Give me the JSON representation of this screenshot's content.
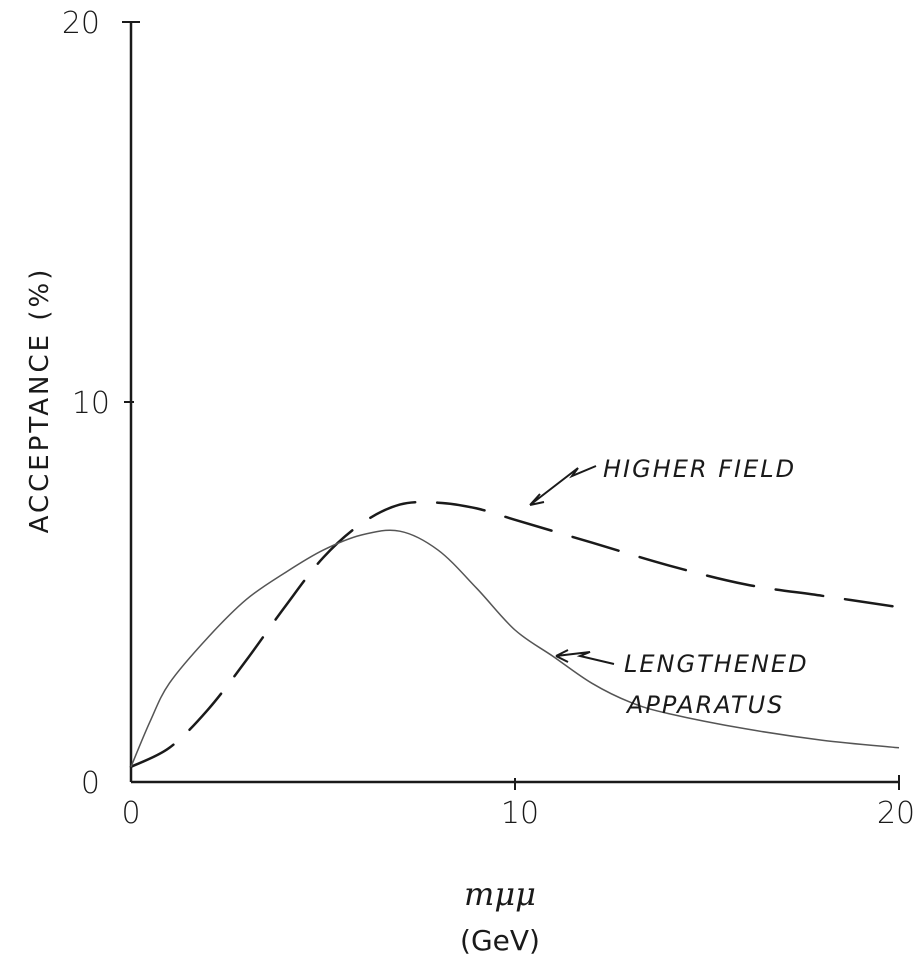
{
  "chart_data": {
    "type": "line",
    "xlabel": "mμμ",
    "xunit": "(GeV)",
    "ylabel": "ACCEPTANCE (%)",
    "xlim": [
      0,
      20
    ],
    "ylim": [
      0,
      20
    ],
    "xticks": [
      "0",
      "10",
      "20"
    ],
    "yticks": [
      "0",
      "10",
      "20"
    ],
    "grid": false,
    "series": [
      {
        "name": "HIGHER FIELD",
        "style": "dashed",
        "color": "#1a1a1a",
        "x": [
          0,
          1,
          2,
          3,
          4,
          5,
          6,
          7,
          8,
          9,
          10,
          12,
          14,
          16,
          18,
          20
        ],
        "y": [
          0.4,
          0.9,
          1.9,
          3.2,
          4.6,
          5.9,
          6.8,
          7.3,
          7.35,
          7.2,
          6.9,
          6.3,
          5.7,
          5.2,
          4.9,
          4.6
        ]
      },
      {
        "name": "LENGTHENED APPARATUS",
        "style": "solid",
        "color": "#555555",
        "x": [
          0,
          0.5,
          1,
          2,
          3,
          4,
          5,
          6,
          7,
          8,
          9,
          10,
          11,
          12,
          13,
          14,
          16,
          18,
          20
        ],
        "y": [
          0.4,
          1.6,
          2.6,
          3.8,
          4.8,
          5.5,
          6.1,
          6.5,
          6.6,
          6.1,
          5.1,
          4.0,
          3.3,
          2.6,
          2.1,
          1.8,
          1.4,
          1.1,
          0.9
        ]
      }
    ],
    "annotations": [
      {
        "text": "HIGHER FIELD",
        "series": "HIGHER FIELD"
      },
      {
        "text": "LENGTHENED",
        "series": "LENGTHENED APPARATUS"
      },
      {
        "text": "APPARATUS",
        "series": "LENGTHENED APPARATUS"
      }
    ]
  }
}
